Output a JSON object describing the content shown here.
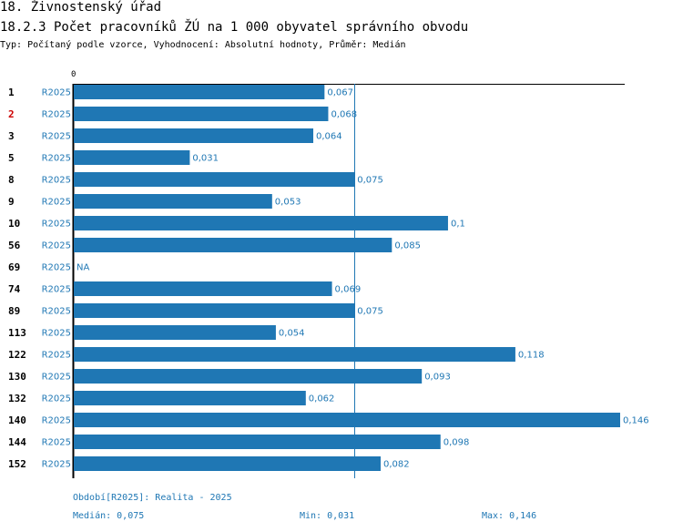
{
  "header": {
    "title": "18. Živnostenský úřad",
    "subtitle": "18.2.3 Počet pracovníků ŽÚ na 1 000 obyvatel správního obvodu",
    "type_line": "Typ: Počítaný podle vzorce, Vyhodnocení: Absolutní hodnoty, Průměr: Medián"
  },
  "colors": {
    "bar": "#1f77b4",
    "text": "#1f77b4",
    "highlight": "#cc0000",
    "axis": "#000000"
  },
  "chart_data": {
    "type": "bar",
    "orientation": "horizontal",
    "axis_zero_label": "0",
    "xlim": [
      0,
      0.146
    ],
    "median_line": 0.075,
    "series_label": "R2025",
    "categories": [
      "1",
      "2",
      "3",
      "5",
      "8",
      "9",
      "10",
      "56",
      "69",
      "74",
      "89",
      "113",
      "122",
      "130",
      "132",
      "140",
      "144",
      "152"
    ],
    "highlight": [
      "2"
    ],
    "values": [
      0.067,
      0.068,
      0.064,
      0.031,
      0.075,
      0.053,
      0.1,
      0.085,
      null,
      0.069,
      0.075,
      0.054,
      0.118,
      0.093,
      0.062,
      0.146,
      0.098,
      0.082
    ],
    "value_labels": [
      "0,067",
      "0,068",
      "0,064",
      "0,031",
      "0,075",
      "0,053",
      "0,1",
      "0,085",
      "NA",
      "0,069",
      "0,075",
      "0,054",
      "0,118",
      "0,093",
      "0,062",
      "0,146",
      "0,098",
      "0,082"
    ]
  },
  "footer": {
    "period": "Období[R2025]: Realita - 2025",
    "median": "Medián: 0,075",
    "min": "Min: 0,031",
    "max": "Max: 0,146"
  }
}
